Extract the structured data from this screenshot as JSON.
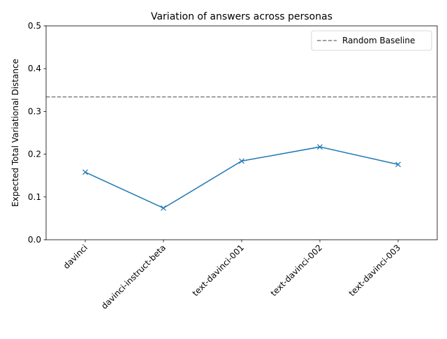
{
  "chart_data": {
    "type": "line",
    "title": "Variation of answers across personas",
    "xlabel": "",
    "ylabel": "Expected Total Variational Distance",
    "categories": [
      "davinci",
      "davinci-instruct-beta",
      "text-davinci-001",
      "text-davinci-002",
      "text-davinci-003"
    ],
    "series": [
      {
        "values": [
          0.158,
          0.074,
          0.184,
          0.217,
          0.176
        ],
        "color": "#1f77b4",
        "marker": "x"
      }
    ],
    "reference_lines": [
      {
        "name": "Random Baseline",
        "value": 0.334,
        "style": "dashed",
        "color": "#808080"
      }
    ],
    "ylim": [
      0.0,
      0.5
    ],
    "yticks": [
      "0.0",
      "0.1",
      "0.2",
      "0.3",
      "0.4",
      "0.5"
    ],
    "xtick_rotation": 45,
    "grid": false,
    "legend_position": "upper-right"
  }
}
